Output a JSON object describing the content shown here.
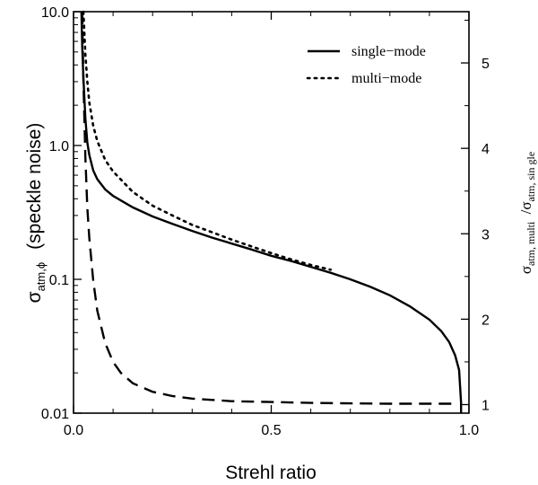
{
  "chart_data": {
    "type": "line",
    "title": "",
    "xlabel": "Strehl ratio",
    "ylabel": {
      "main": "σ",
      "sub": "atm,ϕ",
      "suffix": "(speckle noise)"
    },
    "y2label": {
      "p1": "σ",
      "s1": "atm, multi",
      "p2": " /σ",
      "s2": "atm, sin gle"
    },
    "xlim": [
      0,
      1
    ],
    "ylim_log": [
      0.01,
      10
    ],
    "y2lim": [
      0.9,
      5.6
    ],
    "x_ticks": [
      {
        "value": 0,
        "label": "0.0"
      },
      {
        "value": 0.5,
        "label": "0.5"
      },
      {
        "value": 1,
        "label": "1.0"
      }
    ],
    "y_ticks": [
      {
        "value": 0.01,
        "label": "0.01"
      },
      {
        "value": 0.1,
        "label": "0.1"
      },
      {
        "value": 1,
        "label": "1.0"
      },
      {
        "value": 10,
        "label": "10.0"
      }
    ],
    "y2_ticks": [
      {
        "value": 1,
        "label": "1"
      },
      {
        "value": 2,
        "label": "2"
      },
      {
        "value": 3,
        "label": "3"
      },
      {
        "value": 4,
        "label": "4"
      },
      {
        "value": 5,
        "label": "5"
      }
    ],
    "legend": {
      "position": "top-right",
      "entries": [
        {
          "label": "single−mode",
          "style": "solid"
        },
        {
          "label": "multi−mode",
          "style": "dotted"
        }
      ]
    },
    "series": [
      {
        "name": "single-mode",
        "axis": "left",
        "style": "solid",
        "x": [
          0.02,
          0.022,
          0.025,
          0.03,
          0.035,
          0.04,
          0.05,
          0.06,
          0.08,
          0.1,
          0.15,
          0.2,
          0.25,
          0.3,
          0.35,
          0.4,
          0.45,
          0.5,
          0.55,
          0.6,
          0.65,
          0.7,
          0.75,
          0.8,
          0.85,
          0.9,
          0.93,
          0.95,
          0.965,
          0.975,
          0.98
        ],
        "y": [
          10,
          5.5,
          3.2,
          1.6,
          1.05,
          0.85,
          0.65,
          0.56,
          0.47,
          0.42,
          0.345,
          0.295,
          0.26,
          0.23,
          0.205,
          0.185,
          0.167,
          0.15,
          0.137,
          0.124,
          0.112,
          0.1,
          0.088,
          0.076,
          0.063,
          0.05,
          0.041,
          0.034,
          0.027,
          0.021,
          0.012
        ]
      },
      {
        "name": "multi-mode",
        "axis": "left",
        "style": "dotted",
        "x": [
          0.025,
          0.03,
          0.035,
          0.04,
          0.05,
          0.06,
          0.08,
          0.1,
          0.15,
          0.2,
          0.25,
          0.3,
          0.35,
          0.4,
          0.45,
          0.5,
          0.55,
          0.6,
          0.65
        ],
        "y": [
          10,
          4.8,
          3.0,
          2.1,
          1.4,
          1.08,
          0.78,
          0.64,
          0.45,
          0.355,
          0.3,
          0.255,
          0.225,
          0.198,
          0.176,
          0.157,
          0.141,
          0.128,
          0.118
        ]
      },
      {
        "name": "multi/single ratio",
        "axis": "right",
        "style": "dashed",
        "x": [
          0.022,
          0.025,
          0.03,
          0.035,
          0.04,
          0.05,
          0.06,
          0.08,
          0.1,
          0.12,
          0.15,
          0.2,
          0.25,
          0.3,
          0.4,
          0.5,
          0.6,
          0.7,
          0.8,
          0.9,
          0.97
        ],
        "y": [
          5.6,
          4.8,
          3.9,
          3.3,
          2.95,
          2.45,
          2.1,
          1.72,
          1.5,
          1.37,
          1.25,
          1.15,
          1.1,
          1.07,
          1.04,
          1.03,
          1.02,
          1.015,
          1.01,
          1.01,
          1.01
        ]
      }
    ]
  }
}
